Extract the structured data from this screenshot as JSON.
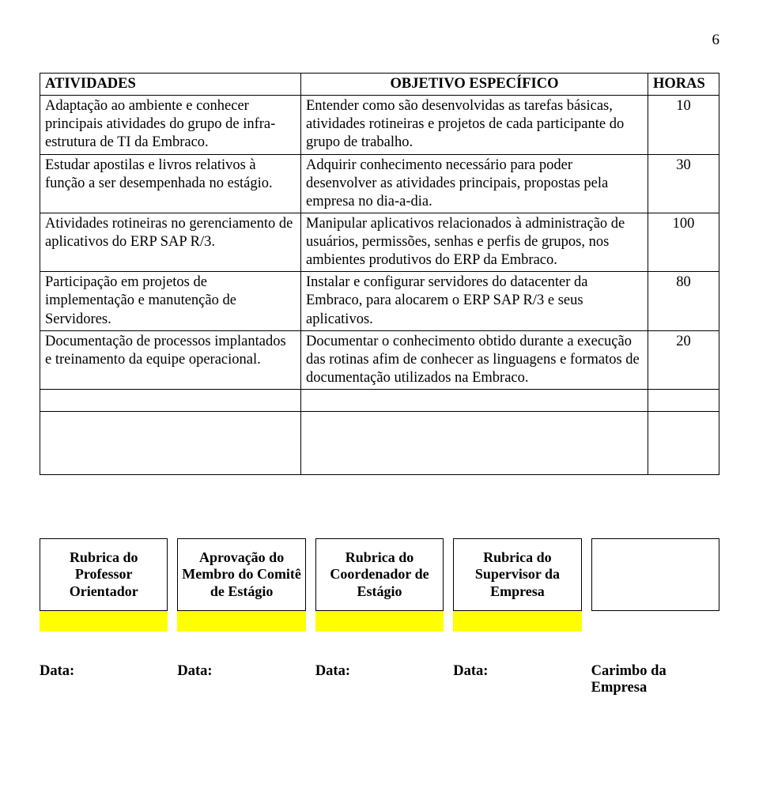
{
  "page_number": "6",
  "table": {
    "headers": {
      "atividades": "ATIVIDADES",
      "objetivo": "OBJETIVO ESPECÍFICO",
      "horas": "HORAS"
    },
    "rows": [
      {
        "atividade": "Adaptação ao ambiente e conhecer principais atividades do grupo de infra-estrutura de TI da Embraco.",
        "objetivo": "Entender como são desenvolvidas as tarefas básicas, atividades rotineiras e projetos de cada participante do grupo de trabalho.",
        "horas": "10"
      },
      {
        "atividade": "Estudar apostilas e livros relativos à função a ser desempenhada no estágio.",
        "objetivo": "Adquirir conhecimento necessário para poder desenvolver as atividades principais, propostas pela empresa no dia-a-dia.",
        "horas": "30"
      },
      {
        "atividade": "Atividades rotineiras no gerenciamento de aplicativos do ERP SAP R/3.",
        "objetivo": "Manipular aplicativos relacionados à administração de usuários, permissões, senhas e perfis de grupos, nos ambientes produtivos do ERP da Embraco.",
        "horas": "100"
      },
      {
        "atividade": "Participação em projetos de implementação e manutenção de Servidores.",
        "objetivo": "Instalar e configurar servidores do datacenter da Embraco, para alocarem o ERP SAP R/3 e seus aplicativos.",
        "horas": "80"
      },
      {
        "atividade": "Documentação de processos implantados e treinamento da equipe operacional.",
        "objetivo": "Documentar o conhecimento obtido durante a execução das rotinas afim de conhecer as linguagens e formatos de documentação utilizados na Embraco.",
        "horas": "20"
      }
    ]
  },
  "signatures": [
    {
      "label": "Rubrica do Professor Orientador",
      "yellow": true,
      "date_label": "Data:"
    },
    {
      "label": "Aprovação do Membro do Comitê de Estágio",
      "yellow": true,
      "date_label": "Data:"
    },
    {
      "label": "Rubrica do Coordenador de Estágio",
      "yellow": true,
      "date_label": "Data:"
    },
    {
      "label": "Rubrica do Supervisor da Empresa",
      "yellow": true,
      "date_label": "Data:"
    },
    {
      "label": "",
      "yellow": false,
      "date_label": "Carimbo da Empresa"
    }
  ],
  "colors": {
    "yellow": "#ffff00",
    "border": "#000000",
    "text": "#000000",
    "background": "#ffffff"
  }
}
